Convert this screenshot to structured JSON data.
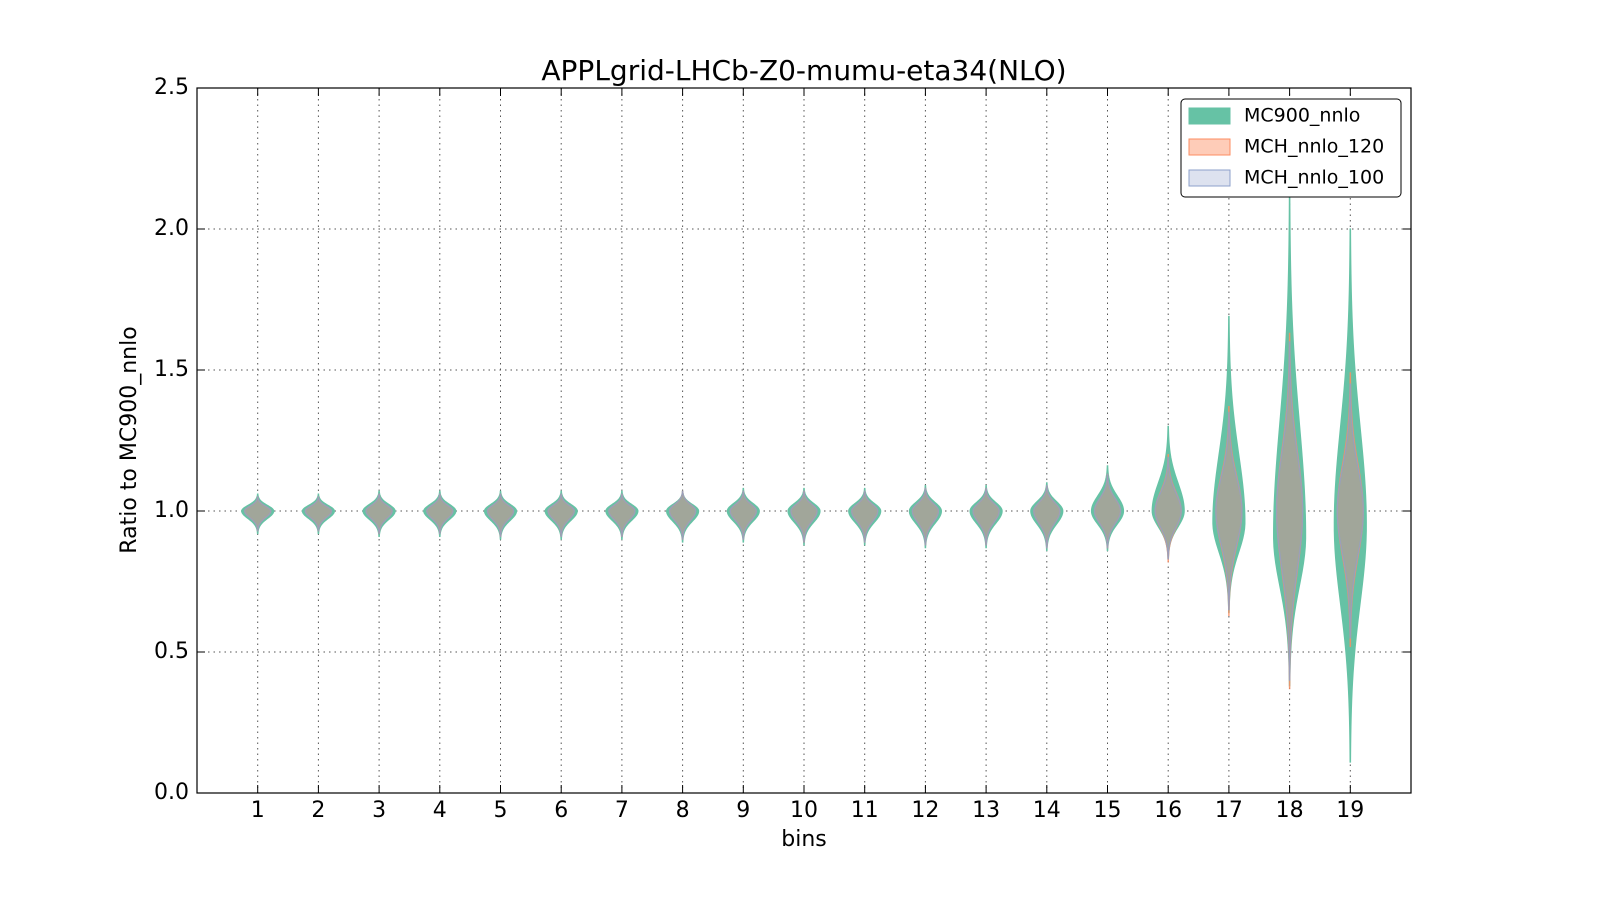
{
  "chart_data": {
    "type": "violin",
    "title": "APPLgrid-LHCb-Z0-mumu-eta34(NLO)",
    "xlabel": "bins",
    "ylabel": "Ratio to MC900_nnlo",
    "x": [
      1,
      2,
      3,
      4,
      5,
      6,
      7,
      8,
      9,
      10,
      11,
      12,
      13,
      14,
      15,
      16,
      17,
      18,
      19
    ],
    "xlim": [
      0,
      20
    ],
    "xticks": [
      1,
      2,
      3,
      4,
      5,
      6,
      7,
      8,
      9,
      10,
      11,
      12,
      13,
      14,
      15,
      16,
      17,
      18,
      19
    ],
    "ylim": [
      0,
      2.5
    ],
    "yticks": [
      {
        "value": 0,
        "label": "0.0"
      },
      0.5,
      {
        "value": 1,
        "label": "1.0"
      },
      1.5,
      {
        "value": 2,
        "label": "2.0"
      },
      2.5
    ],
    "grid": true,
    "legend": "upper right",
    "series": [
      {
        "name": "MC900_nnlo",
        "color": "#66c2a5",
        "values": [
          1,
          1,
          1,
          1,
          1,
          1,
          1,
          1,
          1,
          1,
          1,
          1,
          1,
          1,
          1,
          1,
          0.96,
          0.91,
          0.95
        ],
        "min": [
          0.92,
          0.92,
          0.91,
          0.91,
          0.9,
          0.9,
          0.9,
          0.89,
          0.89,
          0.88,
          0.88,
          0.87,
          0.87,
          0.86,
          0.86,
          0.83,
          0.64,
          0.38,
          0.11
        ],
        "max": [
          1.06,
          1.06,
          1.07,
          1.07,
          1.07,
          1.07,
          1.07,
          1.07,
          1.08,
          1.08,
          1.08,
          1.09,
          1.09,
          1.1,
          1.16,
          1.3,
          1.69,
          2.12,
          2.0
        ]
      },
      {
        "name": "MCH_nnlo_120",
        "color": "#fc8d62",
        "values": [
          1,
          1,
          1,
          1,
          1,
          1,
          1,
          1,
          1,
          1,
          1,
          1,
          1,
          1,
          1,
          1,
          1,
          1,
          1
        ],
        "min": [
          0.93,
          0.93,
          0.92,
          0.92,
          0.91,
          0.91,
          0.91,
          0.9,
          0.9,
          0.89,
          0.89,
          0.88,
          0.88,
          0.87,
          0.87,
          0.82,
          0.63,
          0.37,
          0.52
        ],
        "max": [
          1.05,
          1.05,
          1.06,
          1.06,
          1.06,
          1.06,
          1.06,
          1.07,
          1.07,
          1.07,
          1.07,
          1.08,
          1.08,
          1.09,
          1.13,
          1.2,
          1.37,
          1.63,
          1.49
        ]
      },
      {
        "name": "MCH_nnlo_100",
        "color": "#8da0cb",
        "values": [
          1,
          1,
          1,
          1,
          1,
          1,
          1,
          1,
          1,
          1,
          1,
          1,
          1,
          1,
          1,
          1,
          1,
          1,
          1
        ],
        "min": [
          0.93,
          0.93,
          0.92,
          0.92,
          0.91,
          0.91,
          0.91,
          0.9,
          0.9,
          0.89,
          0.89,
          0.88,
          0.88,
          0.87,
          0.87,
          0.83,
          0.65,
          0.4,
          0.55
        ],
        "max": [
          1.05,
          1.05,
          1.06,
          1.06,
          1.06,
          1.06,
          1.06,
          1.07,
          1.07,
          1.07,
          1.07,
          1.08,
          1.08,
          1.09,
          1.13,
          1.19,
          1.35,
          1.6,
          1.45
        ]
      }
    ]
  }
}
